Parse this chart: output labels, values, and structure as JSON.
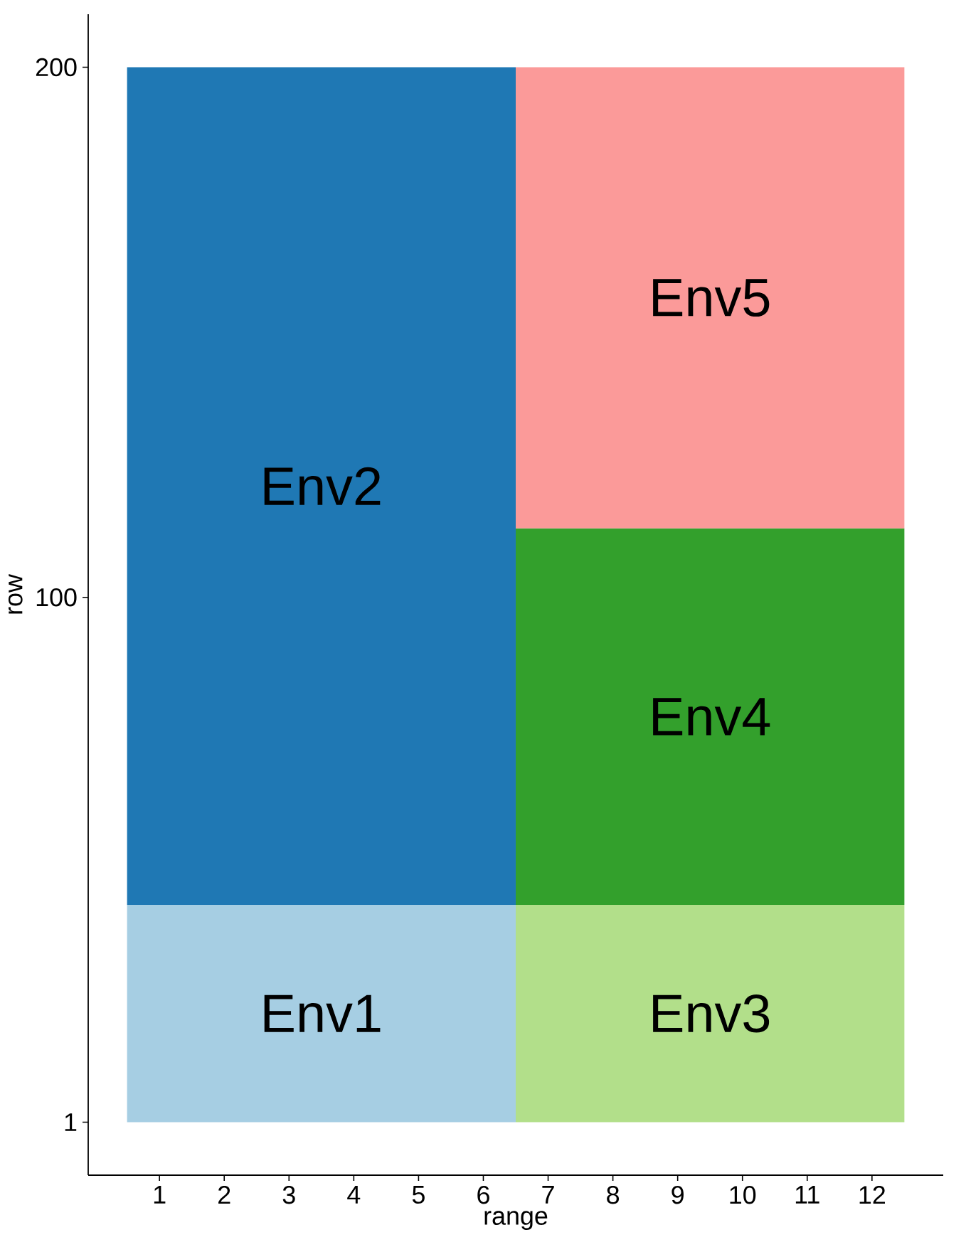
{
  "chart_data": {
    "type": "bar",
    "xlabel": "range",
    "ylabel": "row",
    "x": [
      3.5,
      9.5
    ],
    "xlim": [
      -0.1,
      13.1
    ],
    "xticks": [
      1,
      2,
      3,
      4,
      5,
      6,
      7,
      8,
      9,
      10,
      11,
      12
    ],
    "ylim": [
      -9,
      210
    ],
    "yticks": [
      1,
      100,
      200
    ],
    "series": [
      {
        "name": "Env1",
        "color": "#a6cee3",
        "base": [
          1,
          null
        ],
        "values": [
          41,
          null
        ]
      },
      {
        "name": "Env2",
        "color": "#1f78b4",
        "base": [
          42,
          null
        ],
        "values": [
          158,
          null
        ]
      },
      {
        "name": "Env3",
        "color": "#b2df8a",
        "base": [
          null,
          1
        ],
        "values": [
          null,
          41
        ]
      },
      {
        "name": "Env4",
        "color": "#33a02c",
        "base": [
          null,
          42
        ],
        "values": [
          null,
          71
        ]
      },
      {
        "name": "Env5",
        "color": "#fb9a99",
        "base": [
          null,
          113
        ],
        "values": [
          null,
          87
        ]
      }
    ]
  }
}
